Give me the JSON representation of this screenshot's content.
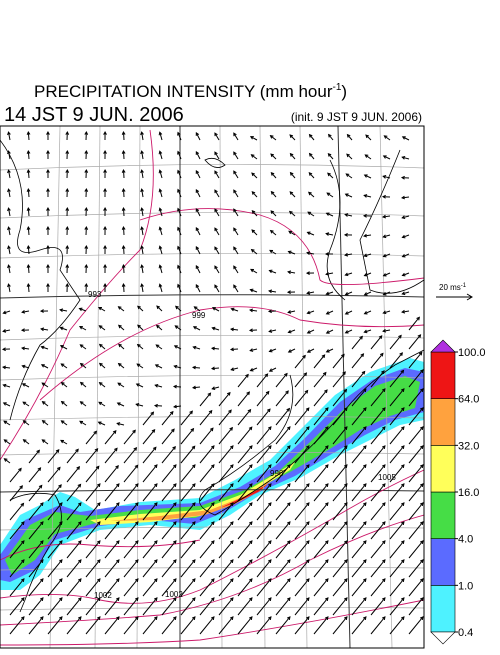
{
  "header": {
    "title": "PRECIPITATION INTENSITY (mm hour",
    "title_sup": "-1",
    "title_end": ")",
    "valid_time": "14 JST 9 JUN. 2006",
    "init_time": "(init. 9 JST 9 JUN. 2006)"
  },
  "reference_vector": {
    "label": "20 ms",
    "label_sup": "-1"
  },
  "contour_labels": [
    "993",
    "999",
    "996",
    "1002",
    "1002",
    "1005"
  ],
  "colorbar": {
    "ticks": [
      {
        "value": 0.4,
        "label": "0.4"
      },
      {
        "value": 1,
        "label": "1.0"
      },
      {
        "value": 4,
        "label": "4.0"
      },
      {
        "value": 16,
        "label": "16.0"
      },
      {
        "value": 32,
        "label": "32.0"
      },
      {
        "value": 64,
        "label": "64.0"
      },
      {
        "value": 100,
        "label": "100.0"
      }
    ],
    "colors": [
      "#4ef2ff",
      "#5b6bff",
      "#46dd46",
      "#ffff5a",
      "#ffa23e",
      "#ee1515"
    ],
    "under_color": "#ffffff",
    "over_color": "#b030e0"
  }
}
